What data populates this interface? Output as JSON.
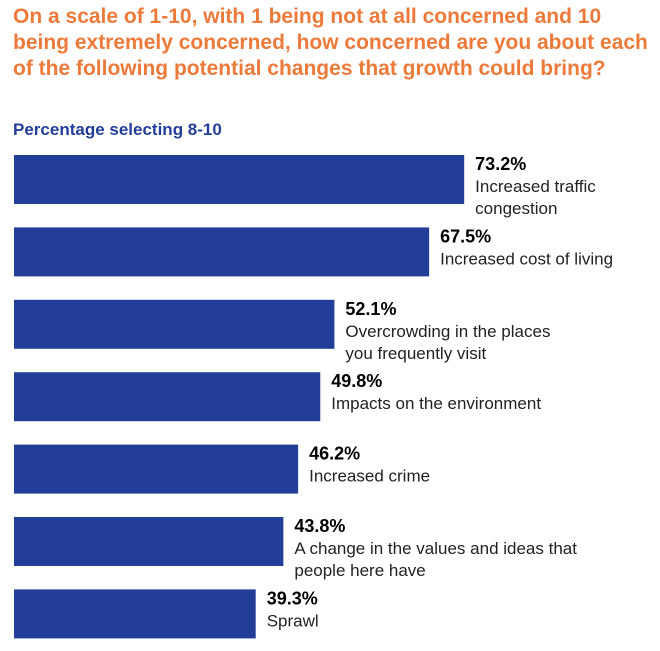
{
  "title": "On a scale of 1-10, with 1 being not at all concerned and 10 being extremely concerned, how concerned are you about each of the following potential changes that growth could bring?",
  "subtitle": "Percentage selecting 8-10",
  "colors": {
    "title": "#EC7A3A",
    "bar": "#233E99"
  },
  "chart_data": {
    "type": "bar",
    "orientation": "horizontal",
    "title": "On a scale of 1-10, with 1 being not at all concerned and 10 being extremely concerned, how concerned are you about each of the following potential changes that growth could bring?",
    "subtitle": "Percentage selecting 8-10",
    "categories": [
      [
        "Increased traffic",
        "congestion"
      ],
      [
        "Increased cost of living"
      ],
      [
        "Overcrowding in the places",
        "you frequently visit"
      ],
      [
        "Impacts on the environment"
      ],
      [
        "Increased crime"
      ],
      [
        "A change in the values and ideas that",
        "people here have"
      ],
      [
        "Sprawl"
      ]
    ],
    "values": [
      73.2,
      67.5,
      52.1,
      49.8,
      46.2,
      43.8,
      39.3
    ],
    "value_labels": [
      "73.2%",
      "67.5%",
      "52.1%",
      "49.8%",
      "46.2%",
      "43.8%",
      "39.3%"
    ],
    "unit": "%",
    "grid": false,
    "legend": "none"
  }
}
